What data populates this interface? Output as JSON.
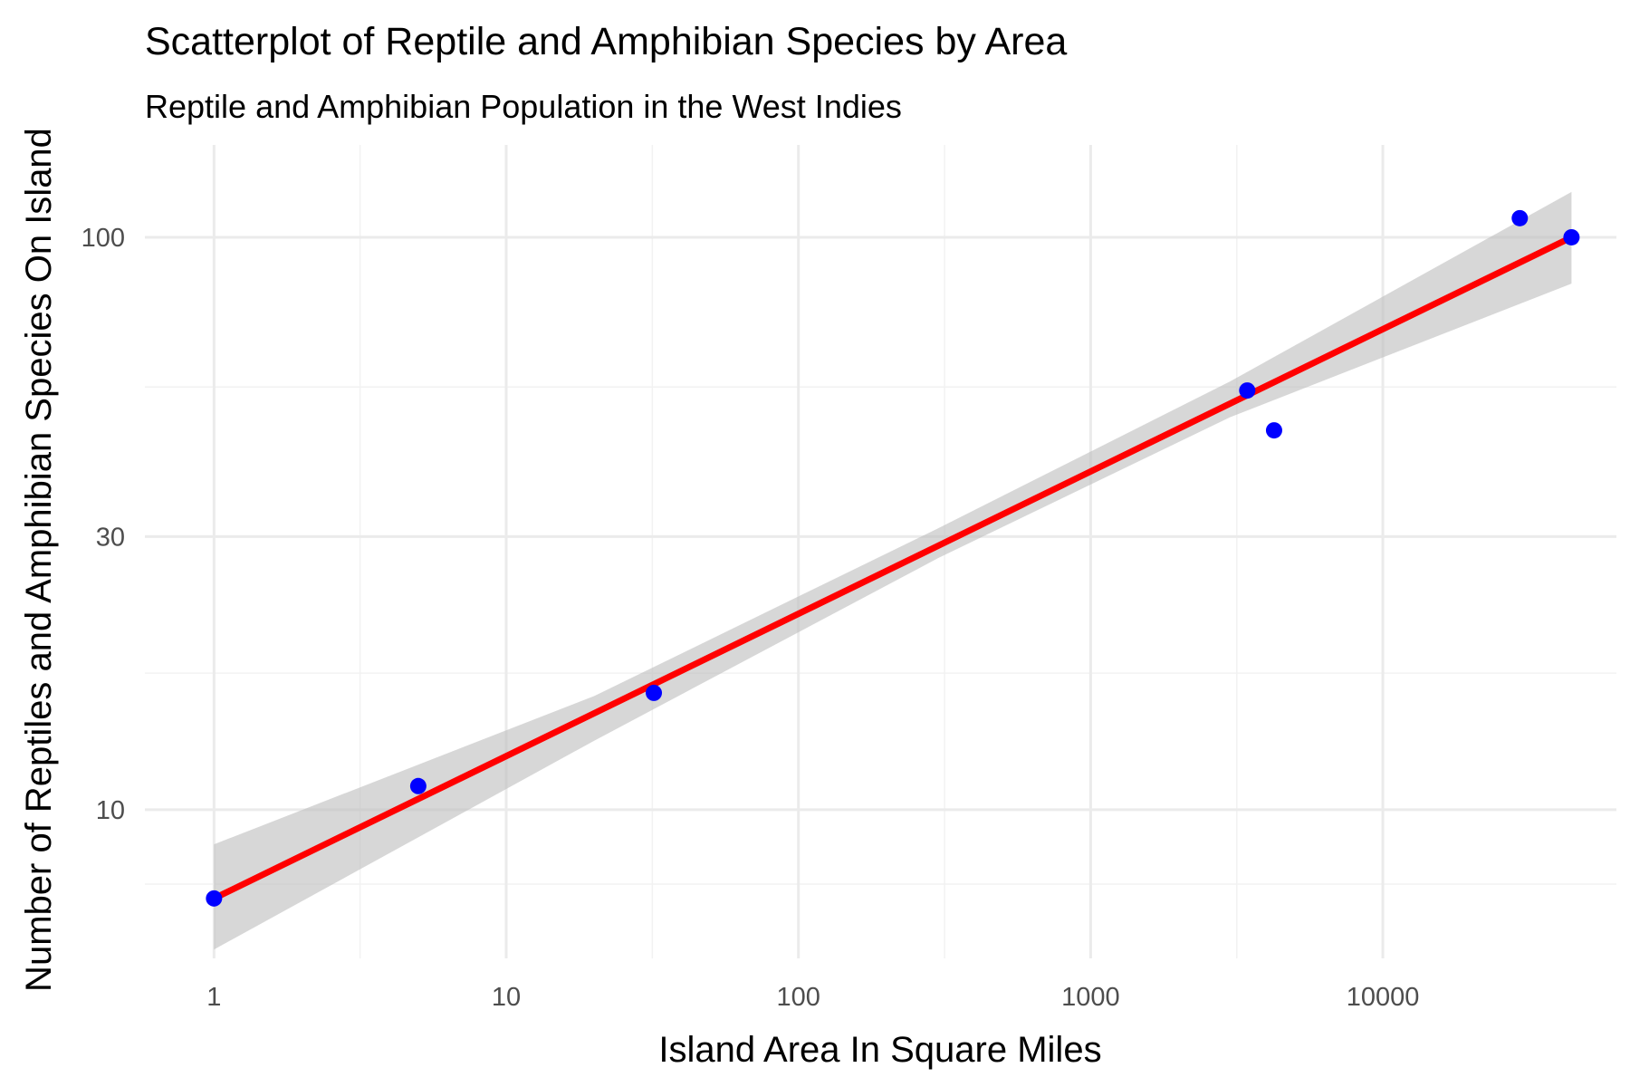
{
  "chart_data": {
    "type": "scatter",
    "title": "Scatterplot of Reptile and Amphibian Species by Area",
    "subtitle": "Reptile and Amphibian Population in the West Indies",
    "xlabel": "Island Area In Square Miles",
    "ylabel": "Number of Reptiles and Amphibian Species On Island",
    "x_scale": "log10",
    "y_scale": "log10",
    "xlim": [
      0.58,
      63000
    ],
    "ylim": [
      5.5,
      145
    ],
    "x_ticks": [
      {
        "value": 1,
        "label": "1"
      },
      {
        "value": 10,
        "label": "10"
      },
      {
        "value": 100,
        "label": "100"
      },
      {
        "value": 1000,
        "label": "1000"
      },
      {
        "value": 10000,
        "label": "10000"
      }
    ],
    "y_ticks": [
      {
        "value": 10,
        "label": "10"
      },
      {
        "value": 30,
        "label": "30"
      },
      {
        "value": 100,
        "label": "100"
      }
    ],
    "grid": true,
    "points": [
      {
        "x": 1,
        "y": 7
      },
      {
        "x": 5,
        "y": 11
      },
      {
        "x": 32,
        "y": 16
      },
      {
        "x": 3435,
        "y": 54
      },
      {
        "x": 4244,
        "y": 46
      },
      {
        "x": 29418,
        "y": 108
      },
      {
        "x": 44218,
        "y": 100
      }
    ],
    "fit": {
      "type": "linear (log-log)",
      "x": [
        1,
        44218
      ],
      "y": [
        7.0,
        100.0
      ],
      "band": [
        {
          "x": 1,
          "lower": 5.7,
          "upper": 8.7
        },
        {
          "x": 20,
          "lower": 13.2,
          "upper": 15.8
        },
        {
          "x": 300,
          "lower": 27.5,
          "upper": 31.0
        },
        {
          "x": 3000,
          "lower": 48.5,
          "upper": 56.0
        },
        {
          "x": 44218,
          "lower": 83.0,
          "upper": 120.0
        }
      ]
    },
    "colors": {
      "points": "#0000ff",
      "fit_line": "#ff0000",
      "band": "#bdbdbd"
    }
  }
}
